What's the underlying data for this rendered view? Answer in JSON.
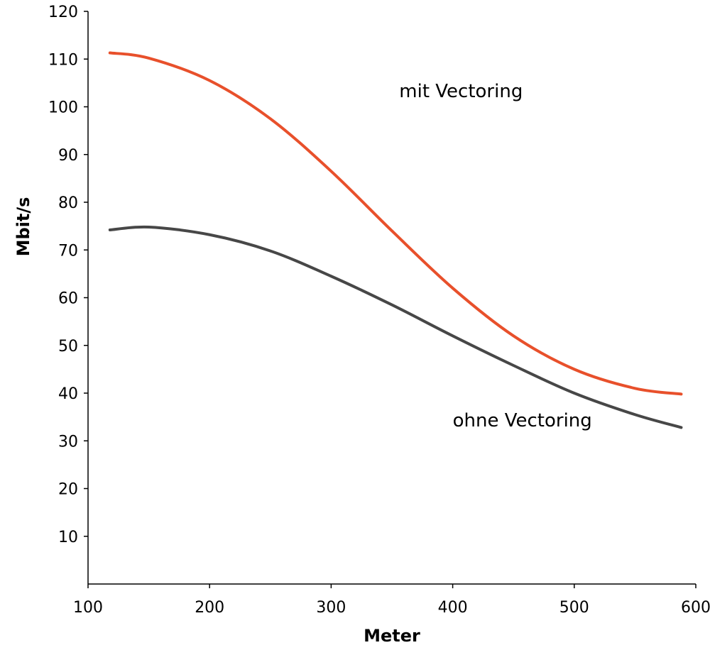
{
  "chart_data": {
    "type": "line",
    "title": "",
    "xlabel": "Meter",
    "ylabel": "Mbit/s",
    "xlim": [
      100,
      600
    ],
    "ylim": [
      0,
      120
    ],
    "xticks": [
      100,
      200,
      300,
      400,
      500,
      600
    ],
    "yticks": [
      10,
      20,
      30,
      40,
      50,
      60,
      70,
      80,
      90,
      100,
      110,
      120
    ],
    "grid": false,
    "series": [
      {
        "name": "mit Vectoring",
        "color": "#e8502b",
        "points": [
          [
            118,
            111.3
          ],
          [
            150,
            110.2
          ],
          [
            200,
            105.5
          ],
          [
            250,
            97.5
          ],
          [
            300,
            86.5
          ],
          [
            350,
            74.0
          ],
          [
            400,
            62.0
          ],
          [
            450,
            52.0
          ],
          [
            500,
            45.0
          ],
          [
            550,
            41.0
          ],
          [
            588,
            39.8
          ]
        ]
      },
      {
        "name": "ohne Vectoring",
        "color": "#474747",
        "points": [
          [
            118,
            74.2
          ],
          [
            150,
            74.8
          ],
          [
            200,
            73.2
          ],
          [
            250,
            69.8
          ],
          [
            300,
            64.5
          ],
          [
            350,
            58.5
          ],
          [
            400,
            52.0
          ],
          [
            450,
            45.8
          ],
          [
            500,
            40.0
          ],
          [
            550,
            35.5
          ],
          [
            588,
            32.8
          ]
        ]
      }
    ],
    "annotations": [
      {
        "text": "mit Vectoring",
        "x": 356,
        "y": 102
      },
      {
        "text": "ohne Vectoring",
        "x": 400,
        "y": 33
      }
    ]
  }
}
